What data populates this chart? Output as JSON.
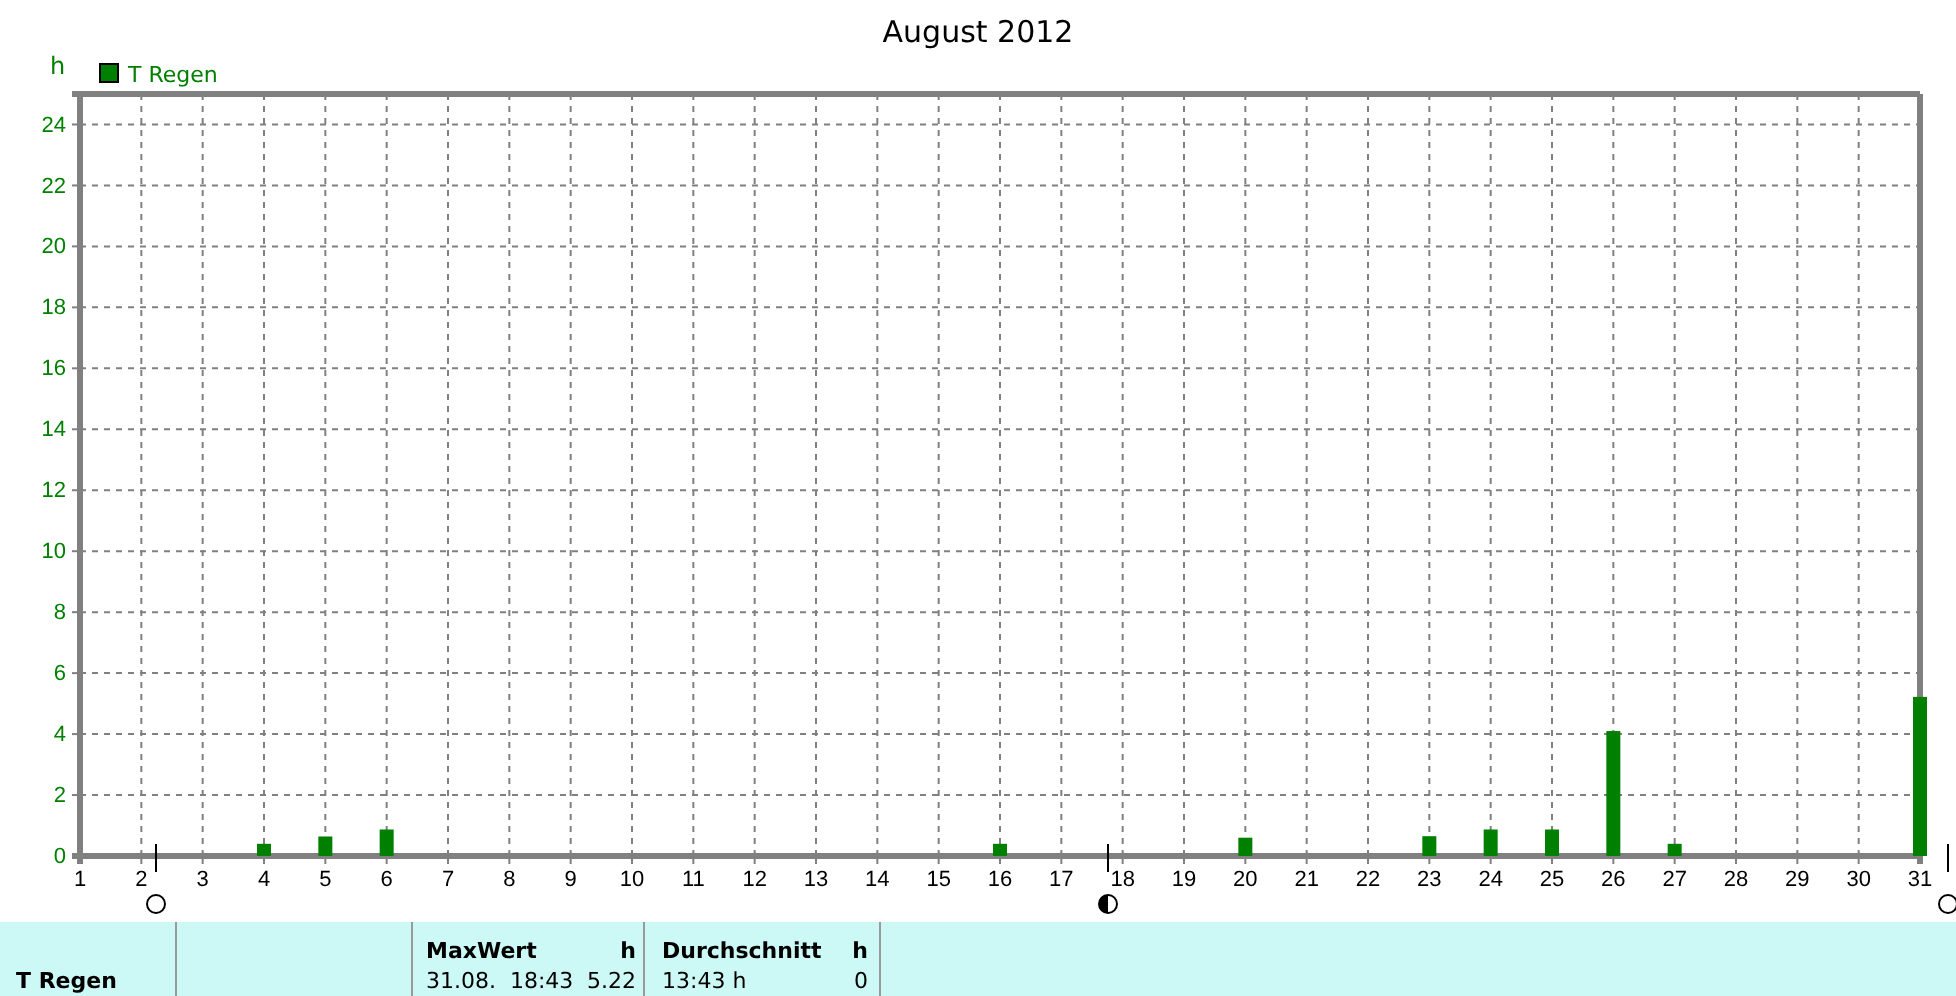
{
  "chart_data": {
    "type": "bar",
    "title": "August 2012",
    "ylabel": "h",
    "x": [
      1,
      2,
      3,
      4,
      5,
      6,
      7,
      8,
      9,
      10,
      11,
      12,
      13,
      14,
      15,
      16,
      17,
      18,
      19,
      20,
      21,
      22,
      23,
      24,
      25,
      26,
      27,
      28,
      29,
      30,
      31
    ],
    "series": [
      {
        "name": "T Regen",
        "color": "#008000",
        "values": [
          0,
          0,
          0,
          0.4,
          0.64,
          0.87,
          0,
          0,
          0,
          0,
          0,
          0,
          0,
          0,
          0,
          0.4,
          0,
          0,
          0,
          0.6,
          0,
          0,
          0.65,
          0.87,
          0.87,
          4.1,
          0.4,
          0,
          0,
          0,
          5.22
        ]
      }
    ],
    "xlim": [
      1,
      31
    ],
    "xticks": [
      1,
      2,
      3,
      4,
      5,
      6,
      7,
      8,
      9,
      10,
      11,
      12,
      13,
      14,
      15,
      16,
      17,
      18,
      19,
      20,
      21,
      22,
      23,
      24,
      25,
      26,
      27,
      28,
      29,
      30,
      31
    ],
    "ylim": [
      0,
      25
    ],
    "yticks": [
      0,
      2,
      4,
      6,
      8,
      10,
      12,
      14,
      16,
      18,
      20,
      22,
      24
    ],
    "grid": true,
    "legend": "top left",
    "annotations": [
      "T Regen",
      "MaxWert",
      "h",
      "31.08.  18:43",
      "5.22",
      "Durchschnitt",
      "h",
      "13:43 h",
      "0"
    ]
  }
}
